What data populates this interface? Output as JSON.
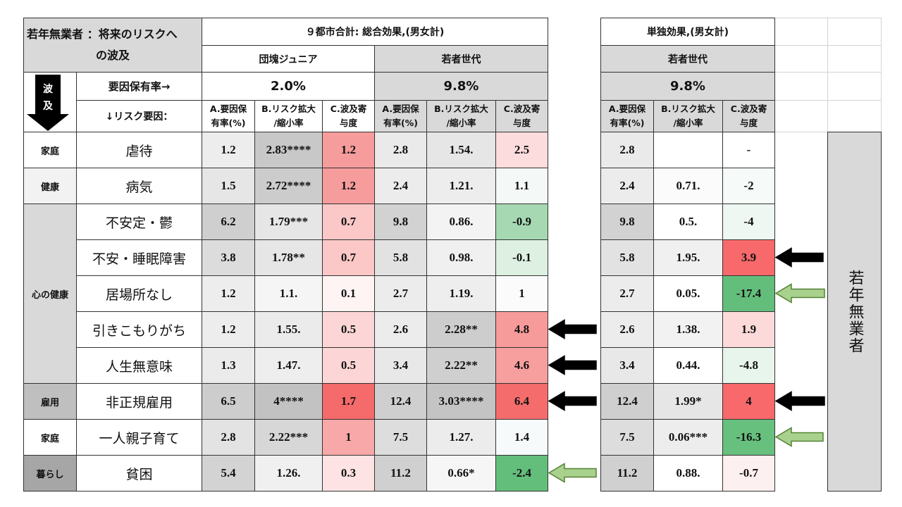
{
  "title_lines": [
    "若年無業者 ：将来のリスクへ",
    "の波及"
  ],
  "groups": [
    "９都市合計: 総合効果,(男女計)",
    "単独効果,(男女計)"
  ],
  "subgroups": [
    {
      "label": "団塊ジュニア",
      "color": "#ffffff"
    },
    {
      "label": "若者世代",
      "color": "#d9d9d9"
    },
    {
      "label": "若者世代",
      "color": "#d9d9d9"
    }
  ],
  "flow_label": [
    "波",
    "及"
  ],
  "rate_label": "要因保有率→",
  "rates": [
    "2.0%",
    "9.8%",
    "9.8%"
  ],
  "factor_label": "↓リスク要因：",
  "column_headers": [
    [
      "A.要因保",
      "有率(%)"
    ],
    [
      "B.リスク拡大",
      "/縮小率"
    ],
    [
      "C.波及寄",
      "与度"
    ]
  ],
  "side_label": "若年無業者",
  "rows": [
    {
      "category": "家庭",
      "category_color": "#ffffff",
      "factor": "虐待",
      "cells": [
        "1.2",
        "2.83****",
        "1.2",
        "2.8",
        "1.54.",
        "2.5",
        "2.8",
        null,
        "-"
      ],
      "colors": [
        "#ededed",
        "#c8c8c8",
        "#f79c9c",
        "#eaeaea",
        "#e6e6e6",
        "#fcdcdc",
        "#eaeaea",
        "#ffffff",
        "#ffffff"
      ]
    },
    {
      "category": "健康",
      "category_color": "#f2f2f2",
      "factor": "病気",
      "cells": [
        "1.5",
        "2.72****",
        "1.2",
        "2.4",
        "1.21.",
        "1.1",
        "2.4",
        "0.71.",
        "-2"
      ],
      "colors": [
        "#e6e6e6",
        "#cccccc",
        "#f79c9c",
        "#ececec",
        "#ededed",
        "#f4f8f6",
        "#ececec",
        "#fbfbfb",
        "#f6faf8"
      ]
    },
    {
      "category": "心の健康",
      "category_color": "#d9d9d9",
      "factor": "不安定・鬱",
      "cells": [
        "6.2",
        "1.79***",
        "0.7",
        "9.8",
        "0.86.",
        "-0.9",
        "9.8",
        "0.5.",
        "-4"
      ],
      "colors": [
        "#cfcfcf",
        "#e6e6e6",
        "#fbc7c7",
        "#d2d2d2",
        "#f3f3f3",
        "#a6d9b2",
        "#d2d2d2",
        "#ffffff",
        "#eef7f1"
      ]
    },
    {
      "category": null,
      "factor": "不安・睡眠障害",
      "cells": [
        "3.8",
        "1.78**",
        "0.7",
        "5.8",
        "0.98.",
        "-0.1",
        "5.8",
        "1.95.",
        "3.9"
      ],
      "colors": [
        "#dcdcdc",
        "#e6e6e6",
        "#fbc7c7",
        "#e2e2e2",
        "#f0f0f0",
        "#ddf0e2",
        "#e2e2e2",
        "#f0f0f0",
        "#f8696b"
      ]
    },
    {
      "category": null,
      "factor": "居場所なし",
      "cells": [
        "1.2",
        "1.1.",
        "0.1",
        "2.7",
        "1.19.",
        "1",
        "2.7",
        "0.05.",
        "-17.4"
      ],
      "colors": [
        "#ededed",
        "#f5f5f5",
        "#fff4f4",
        "#ececec",
        "#eeeeee",
        "#fbfbfb",
        "#ececec",
        "#ffffff",
        "#63be7b"
      ]
    },
    {
      "category": null,
      "factor": "引きこもりがち",
      "cells": [
        "1.2",
        "1.55.",
        "0.5",
        "2.6",
        "2.28**",
        "4.8",
        "2.6",
        "1.38.",
        "1.9"
      ],
      "colors": [
        "#ededed",
        "#ebebeb",
        "#fcd6d6",
        "#ececec",
        "#cdcdcd",
        "#f79a9a",
        "#ececec",
        "#f2f2f2",
        "#fcdada"
      ]
    },
    {
      "category": null,
      "factor": "人生無意味",
      "cells": [
        "1.3",
        "1.47.",
        "0.5",
        "3.4",
        "2.22**",
        "4.6",
        "3.4",
        "0.44.",
        "-4.8"
      ],
      "colors": [
        "#ebebeb",
        "#eeeeee",
        "#fcd6d6",
        "#e8e8e8",
        "#cfcfcf",
        "#f79e9e",
        "#e8e8e8",
        "#ffffff",
        "#e8f5ec"
      ]
    },
    {
      "category": "雇用",
      "category_color": "#bfbfbf",
      "factor": "非正規雇用",
      "cells": [
        "6.5",
        "4****",
        "1.7",
        "12.4",
        "3.03****",
        "6.4",
        "12.4",
        "1.99*",
        "4"
      ],
      "colors": [
        "#cdcdcd",
        "#c2c2c2",
        "#f56a6a",
        "#cfcfcf",
        "#c4c4c4",
        "#f56c6c",
        "#cfcfcf",
        "#e6e6e6",
        "#f8696b"
      ]
    },
    {
      "category": "家庭",
      "category_color": "#ffffff",
      "factor": "一人親子育て",
      "cells": [
        "2.8",
        "2.22***",
        "1",
        "7.5",
        "1.27.",
        "1.4",
        "7.5",
        "0.06***",
        "-16.3"
      ],
      "colors": [
        "#e3e3e3",
        "#d7d7d7",
        "#f8a8a8",
        "#dddddd",
        "#ececec",
        "#f7fafa",
        "#dddddd",
        "#ededed",
        "#67c07e"
      ]
    },
    {
      "category": "暮らし",
      "category_color": "#a6a6a6",
      "factor": "貧困",
      "cells": [
        "5.4",
        "1.26.",
        "0.3",
        "11.2",
        "0.66*",
        "-2.4",
        "11.2",
        "0.88.",
        "-0.7"
      ],
      "colors": [
        "#d3d3d3",
        "#f0f0f0",
        "#fde3e3",
        "#d0d0d0",
        "#f6f6f6",
        "#63be7b",
        "#d0d0d0",
        "#ffffff",
        "#fdf0f0"
      ]
    }
  ]
}
